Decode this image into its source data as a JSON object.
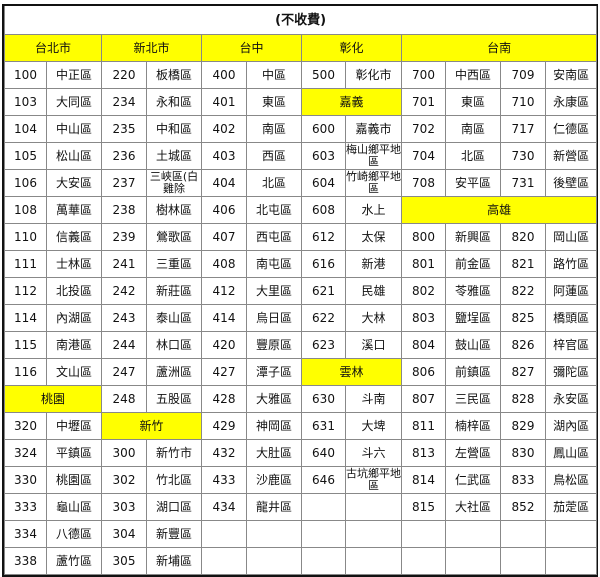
{
  "title": "(不收費)",
  "colors": {
    "header_bg": "#ffff00"
  },
  "rows": [
    [
      {
        "h": "台北市",
        "span": 2
      },
      {
        "h": "新北市",
        "span": 2
      },
      {
        "h": "台中",
        "span": 2
      },
      {
        "h": "彰化",
        "span": 2
      },
      {
        "h": "台南",
        "span": 4
      }
    ],
    [
      "100",
      "中正區",
      "220",
      "板橋區",
      "400",
      "中區",
      "500",
      "彰化市",
      "700",
      "中西區",
      "709",
      "安南區"
    ],
    [
      "103",
      "大同區",
      "234",
      "永和區",
      "401",
      "東區",
      {
        "h": "嘉義",
        "span": 2
      },
      "701",
      "東區",
      "710",
      "永康區"
    ],
    [
      "104",
      "中山區",
      "235",
      "中和區",
      "402",
      "南區",
      "600",
      "嘉義市",
      "702",
      "南區",
      "717",
      "仁德區"
    ],
    [
      "105",
      "松山區",
      "236",
      "土城區",
      "403",
      "西區",
      "603",
      "梅山鄉平地區",
      "704",
      "北區",
      "730",
      "新營區"
    ],
    [
      "106",
      "大安區",
      "237",
      "三峽區(白雞除",
      "404",
      "北區",
      "604",
      "竹崎鄉平地區",
      "708",
      "安平區",
      "731",
      "後壁區"
    ],
    [
      "108",
      "萬華區",
      "238",
      "樹林區",
      "406",
      "北屯區",
      "608",
      "水上",
      {
        "h": "高雄",
        "span": 4
      }
    ],
    [
      "110",
      "信義區",
      "239",
      "鶯歌區",
      "407",
      "西屯區",
      "612",
      "太保",
      "800",
      "新興區",
      "820",
      "岡山區"
    ],
    [
      "111",
      "士林區",
      "241",
      "三重區",
      "408",
      "南屯區",
      "616",
      "新港",
      "801",
      "前金區",
      "821",
      "路竹區"
    ],
    [
      "112",
      "北投區",
      "242",
      "新莊區",
      "412",
      "大里區",
      "621",
      "民雄",
      "802",
      "苓雅區",
      "822",
      "阿蓮區"
    ],
    [
      "114",
      "內湖區",
      "243",
      "泰山區",
      "414",
      "烏日區",
      "622",
      "大林",
      "803",
      "鹽埕區",
      "825",
      "橋頭區"
    ],
    [
      "115",
      "南港區",
      "244",
      "林口區",
      "420",
      "豐原區",
      "623",
      "溪口",
      "804",
      "鼓山區",
      "826",
      "梓官區"
    ],
    [
      "116",
      "文山區",
      "247",
      "蘆洲區",
      "427",
      "潭子區",
      {
        "h": "雲林",
        "span": 2
      },
      "806",
      "前鎮區",
      "827",
      "彌陀區"
    ],
    [
      {
        "h": "桃園",
        "span": 2
      },
      "248",
      "五股區",
      "428",
      "大雅區",
      "630",
      "斗南",
      "807",
      "三民區",
      "828",
      "永安區"
    ],
    [
      "320",
      "中壢區",
      {
        "h": "新竹",
        "span": 2
      },
      "429",
      "神岡區",
      "631",
      "大埤",
      "811",
      "楠梓區",
      "829",
      "湖內區"
    ],
    [
      "324",
      "平鎮區",
      "300",
      "新竹市",
      "432",
      "大肚區",
      "640",
      "斗六",
      "813",
      "左營區",
      "830",
      "鳳山區"
    ],
    [
      "330",
      "桃園區",
      "302",
      "竹北區",
      "433",
      "沙鹿區",
      "646",
      "古坑鄉平地區",
      "814",
      "仁武區",
      "833",
      "鳥松區"
    ],
    [
      "333",
      "龜山區",
      "303",
      "湖口區",
      "434",
      "龍井區",
      "",
      "",
      "815",
      "大社區",
      "852",
      "茄萣區"
    ],
    [
      "334",
      "八德區",
      "304",
      "新豐區",
      "",
      "",
      "",
      "",
      "",
      "",
      "",
      ""
    ],
    [
      "338",
      "蘆竹區",
      "305",
      "新埔區",
      "",
      "",
      "",
      "",
      "",
      "",
      "",
      ""
    ]
  ]
}
